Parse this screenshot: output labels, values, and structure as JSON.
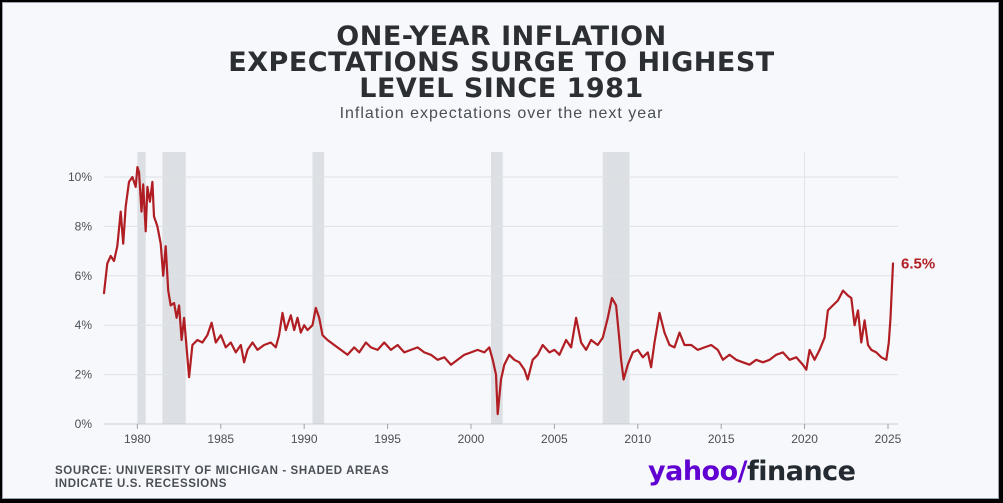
{
  "header": {
    "title_lines": [
      "ONE-YEAR INFLATION",
      "EXPECTATIONS SURGE TO HIGHEST",
      "LEVEL SINCE 1981"
    ],
    "subtitle": "Inflation expectations over the next year"
  },
  "footer": {
    "source_lines": [
      "SOURCE: UNIVERSITY OF MICHIGAN - SHADED AREAS",
      "INDICATE U.S. RECESSIONS"
    ],
    "logo_part1": "yahoo",
    "logo_slash": "/",
    "logo_part2": "finance"
  },
  "colors": {
    "line": "#b01e23",
    "recession": "#dcdfe3",
    "grid": "#dfe2e6",
    "logo_purple": "#6001d2",
    "logo_dark": "#232a31",
    "text": "#4a4f56"
  },
  "chart_data": {
    "type": "line",
    "title": "ONE-YEAR INFLATION EXPECTATIONS SURGE TO HIGHEST LEVEL SINCE 1981",
    "subtitle": "Inflation expectations over the next year",
    "xlim": [
      1978,
      2025.6
    ],
    "ylim": [
      0,
      10.5
    ],
    "x_ticks": [
      1980,
      1985,
      1990,
      1995,
      2000,
      2005,
      2010,
      2015,
      2020,
      2025
    ],
    "x_tick_labels": [
      "1980",
      "1985",
      "1990",
      "1995",
      "2000",
      "2005",
      "2010",
      "2015",
      "2020",
      "2025"
    ],
    "y_ticks": [
      0,
      2,
      4,
      6,
      8,
      10
    ],
    "y_tick_labels": [
      "0%",
      "2%",
      "4%",
      "6%",
      "8%",
      "10%"
    ],
    "grid": true,
    "recessions": [
      [
        1980.0,
        1980.5
      ],
      [
        1981.5,
        1982.9
      ],
      [
        1990.5,
        1991.2
      ],
      [
        2001.2,
        2001.9
      ],
      [
        2007.9,
        2009.5
      ]
    ],
    "annotation": {
      "label": "6.5%",
      "x": 2025.3,
      "y": 6.5
    },
    "series": [
      {
        "values": [
          [
            1978.0,
            5.3
          ],
          [
            1978.2,
            6.5
          ],
          [
            1978.4,
            6.8
          ],
          [
            1978.6,
            6.6
          ],
          [
            1978.8,
            7.2
          ],
          [
            1979.0,
            8.6
          ],
          [
            1979.15,
            7.3
          ],
          [
            1979.3,
            8.8
          ],
          [
            1979.5,
            9.8
          ],
          [
            1979.7,
            10.0
          ],
          [
            1979.9,
            9.6
          ],
          [
            1980.0,
            10.4
          ],
          [
            1980.1,
            10.2
          ],
          [
            1980.25,
            8.6
          ],
          [
            1980.35,
            9.7
          ],
          [
            1980.5,
            7.8
          ],
          [
            1980.6,
            9.6
          ],
          [
            1980.75,
            9.0
          ],
          [
            1980.9,
            9.8
          ],
          [
            1981.0,
            8.4
          ],
          [
            1981.2,
            8.0
          ],
          [
            1981.4,
            7.3
          ],
          [
            1981.55,
            6.0
          ],
          [
            1981.7,
            7.2
          ],
          [
            1981.85,
            5.4
          ],
          [
            1982.0,
            4.8
          ],
          [
            1982.2,
            4.9
          ],
          [
            1982.35,
            4.3
          ],
          [
            1982.5,
            4.8
          ],
          [
            1982.65,
            3.4
          ],
          [
            1982.8,
            4.3
          ],
          [
            1983.0,
            2.7
          ],
          [
            1983.1,
            1.9
          ],
          [
            1983.3,
            3.2
          ],
          [
            1983.6,
            3.4
          ],
          [
            1983.9,
            3.3
          ],
          [
            1984.2,
            3.6
          ],
          [
            1984.45,
            4.1
          ],
          [
            1984.7,
            3.3
          ],
          [
            1985.0,
            3.6
          ],
          [
            1985.3,
            3.1
          ],
          [
            1985.6,
            3.3
          ],
          [
            1985.9,
            2.9
          ],
          [
            1986.2,
            3.2
          ],
          [
            1986.4,
            2.5
          ],
          [
            1986.6,
            3.0
          ],
          [
            1986.9,
            3.3
          ],
          [
            1987.2,
            3.0
          ],
          [
            1987.6,
            3.2
          ],
          [
            1988.0,
            3.3
          ],
          [
            1988.3,
            3.1
          ],
          [
            1988.5,
            3.6
          ],
          [
            1988.7,
            4.5
          ],
          [
            1988.9,
            3.8
          ],
          [
            1989.2,
            4.4
          ],
          [
            1989.4,
            3.8
          ],
          [
            1989.6,
            4.3
          ],
          [
            1989.8,
            3.7
          ],
          [
            1990.0,
            4.0
          ],
          [
            1990.2,
            3.8
          ],
          [
            1990.5,
            4.0
          ],
          [
            1990.7,
            4.7
          ],
          [
            1990.9,
            4.3
          ],
          [
            1991.1,
            3.6
          ],
          [
            1991.4,
            3.4
          ],
          [
            1991.8,
            3.2
          ],
          [
            1992.2,
            3.0
          ],
          [
            1992.6,
            2.8
          ],
          [
            1993.0,
            3.1
          ],
          [
            1993.3,
            2.9
          ],
          [
            1993.7,
            3.3
          ],
          [
            1994.0,
            3.1
          ],
          [
            1994.4,
            3.0
          ],
          [
            1994.8,
            3.3
          ],
          [
            1995.2,
            3.0
          ],
          [
            1995.6,
            3.2
          ],
          [
            1996.0,
            2.9
          ],
          [
            1996.4,
            3.0
          ],
          [
            1996.8,
            3.1
          ],
          [
            1997.2,
            2.9
          ],
          [
            1997.6,
            2.8
          ],
          [
            1998.0,
            2.6
          ],
          [
            1998.4,
            2.7
          ],
          [
            1998.8,
            2.4
          ],
          [
            1999.2,
            2.6
          ],
          [
            1999.6,
            2.8
          ],
          [
            2000.0,
            2.9
          ],
          [
            2000.4,
            3.0
          ],
          [
            2000.8,
            2.9
          ],
          [
            2001.1,
            3.1
          ],
          [
            2001.3,
            2.6
          ],
          [
            2001.5,
            2.0
          ],
          [
            2001.6,
            0.4
          ],
          [
            2001.8,
            1.8
          ],
          [
            2002.0,
            2.4
          ],
          [
            2002.3,
            2.8
          ],
          [
            2002.6,
            2.6
          ],
          [
            2002.9,
            2.5
          ],
          [
            2003.2,
            2.2
          ],
          [
            2003.4,
            1.8
          ],
          [
            2003.7,
            2.6
          ],
          [
            2004.0,
            2.8
          ],
          [
            2004.3,
            3.2
          ],
          [
            2004.7,
            2.9
          ],
          [
            2005.0,
            3.0
          ],
          [
            2005.3,
            2.8
          ],
          [
            2005.7,
            3.4
          ],
          [
            2006.0,
            3.1
          ],
          [
            2006.3,
            4.3
          ],
          [
            2006.6,
            3.3
          ],
          [
            2006.9,
            3.0
          ],
          [
            2007.2,
            3.4
          ],
          [
            2007.6,
            3.2
          ],
          [
            2007.9,
            3.5
          ],
          [
            2008.2,
            4.3
          ],
          [
            2008.45,
            5.1
          ],
          [
            2008.7,
            4.8
          ],
          [
            2008.9,
            3.4
          ],
          [
            2009.0,
            2.6
          ],
          [
            2009.15,
            1.8
          ],
          [
            2009.4,
            2.4
          ],
          [
            2009.7,
            2.9
          ],
          [
            2010.0,
            3.0
          ],
          [
            2010.3,
            2.7
          ],
          [
            2010.6,
            2.9
          ],
          [
            2010.8,
            2.3
          ],
          [
            2011.0,
            3.3
          ],
          [
            2011.3,
            4.5
          ],
          [
            2011.6,
            3.7
          ],
          [
            2011.9,
            3.2
          ],
          [
            2012.2,
            3.1
          ],
          [
            2012.5,
            3.7
          ],
          [
            2012.8,
            3.2
          ],
          [
            2013.2,
            3.2
          ],
          [
            2013.6,
            3.0
          ],
          [
            2014.0,
            3.1
          ],
          [
            2014.4,
            3.2
          ],
          [
            2014.8,
            3.0
          ],
          [
            2015.1,
            2.6
          ],
          [
            2015.5,
            2.8
          ],
          [
            2015.9,
            2.6
          ],
          [
            2016.3,
            2.5
          ],
          [
            2016.7,
            2.4
          ],
          [
            2017.1,
            2.6
          ],
          [
            2017.5,
            2.5
          ],
          [
            2017.9,
            2.6
          ],
          [
            2018.3,
            2.8
          ],
          [
            2018.7,
            2.9
          ],
          [
            2019.1,
            2.6
          ],
          [
            2019.5,
            2.7
          ],
          [
            2019.9,
            2.4
          ],
          [
            2020.1,
            2.2
          ],
          [
            2020.3,
            3.0
          ],
          [
            2020.6,
            2.6
          ],
          [
            2020.9,
            3.0
          ],
          [
            2021.2,
            3.5
          ],
          [
            2021.4,
            4.6
          ],
          [
            2021.7,
            4.8
          ],
          [
            2022.0,
            5.0
          ],
          [
            2022.3,
            5.4
          ],
          [
            2022.6,
            5.2
          ],
          [
            2022.8,
            5.1
          ],
          [
            2023.0,
            4.0
          ],
          [
            2023.2,
            4.6
          ],
          [
            2023.4,
            3.3
          ],
          [
            2023.6,
            4.2
          ],
          [
            2023.8,
            3.2
          ],
          [
            2024.0,
            3.0
          ],
          [
            2024.3,
            2.9
          ],
          [
            2024.6,
            2.7
          ],
          [
            2024.9,
            2.6
          ],
          [
            2025.05,
            3.3
          ],
          [
            2025.15,
            4.3
          ],
          [
            2025.3,
            6.5
          ]
        ]
      }
    ]
  }
}
